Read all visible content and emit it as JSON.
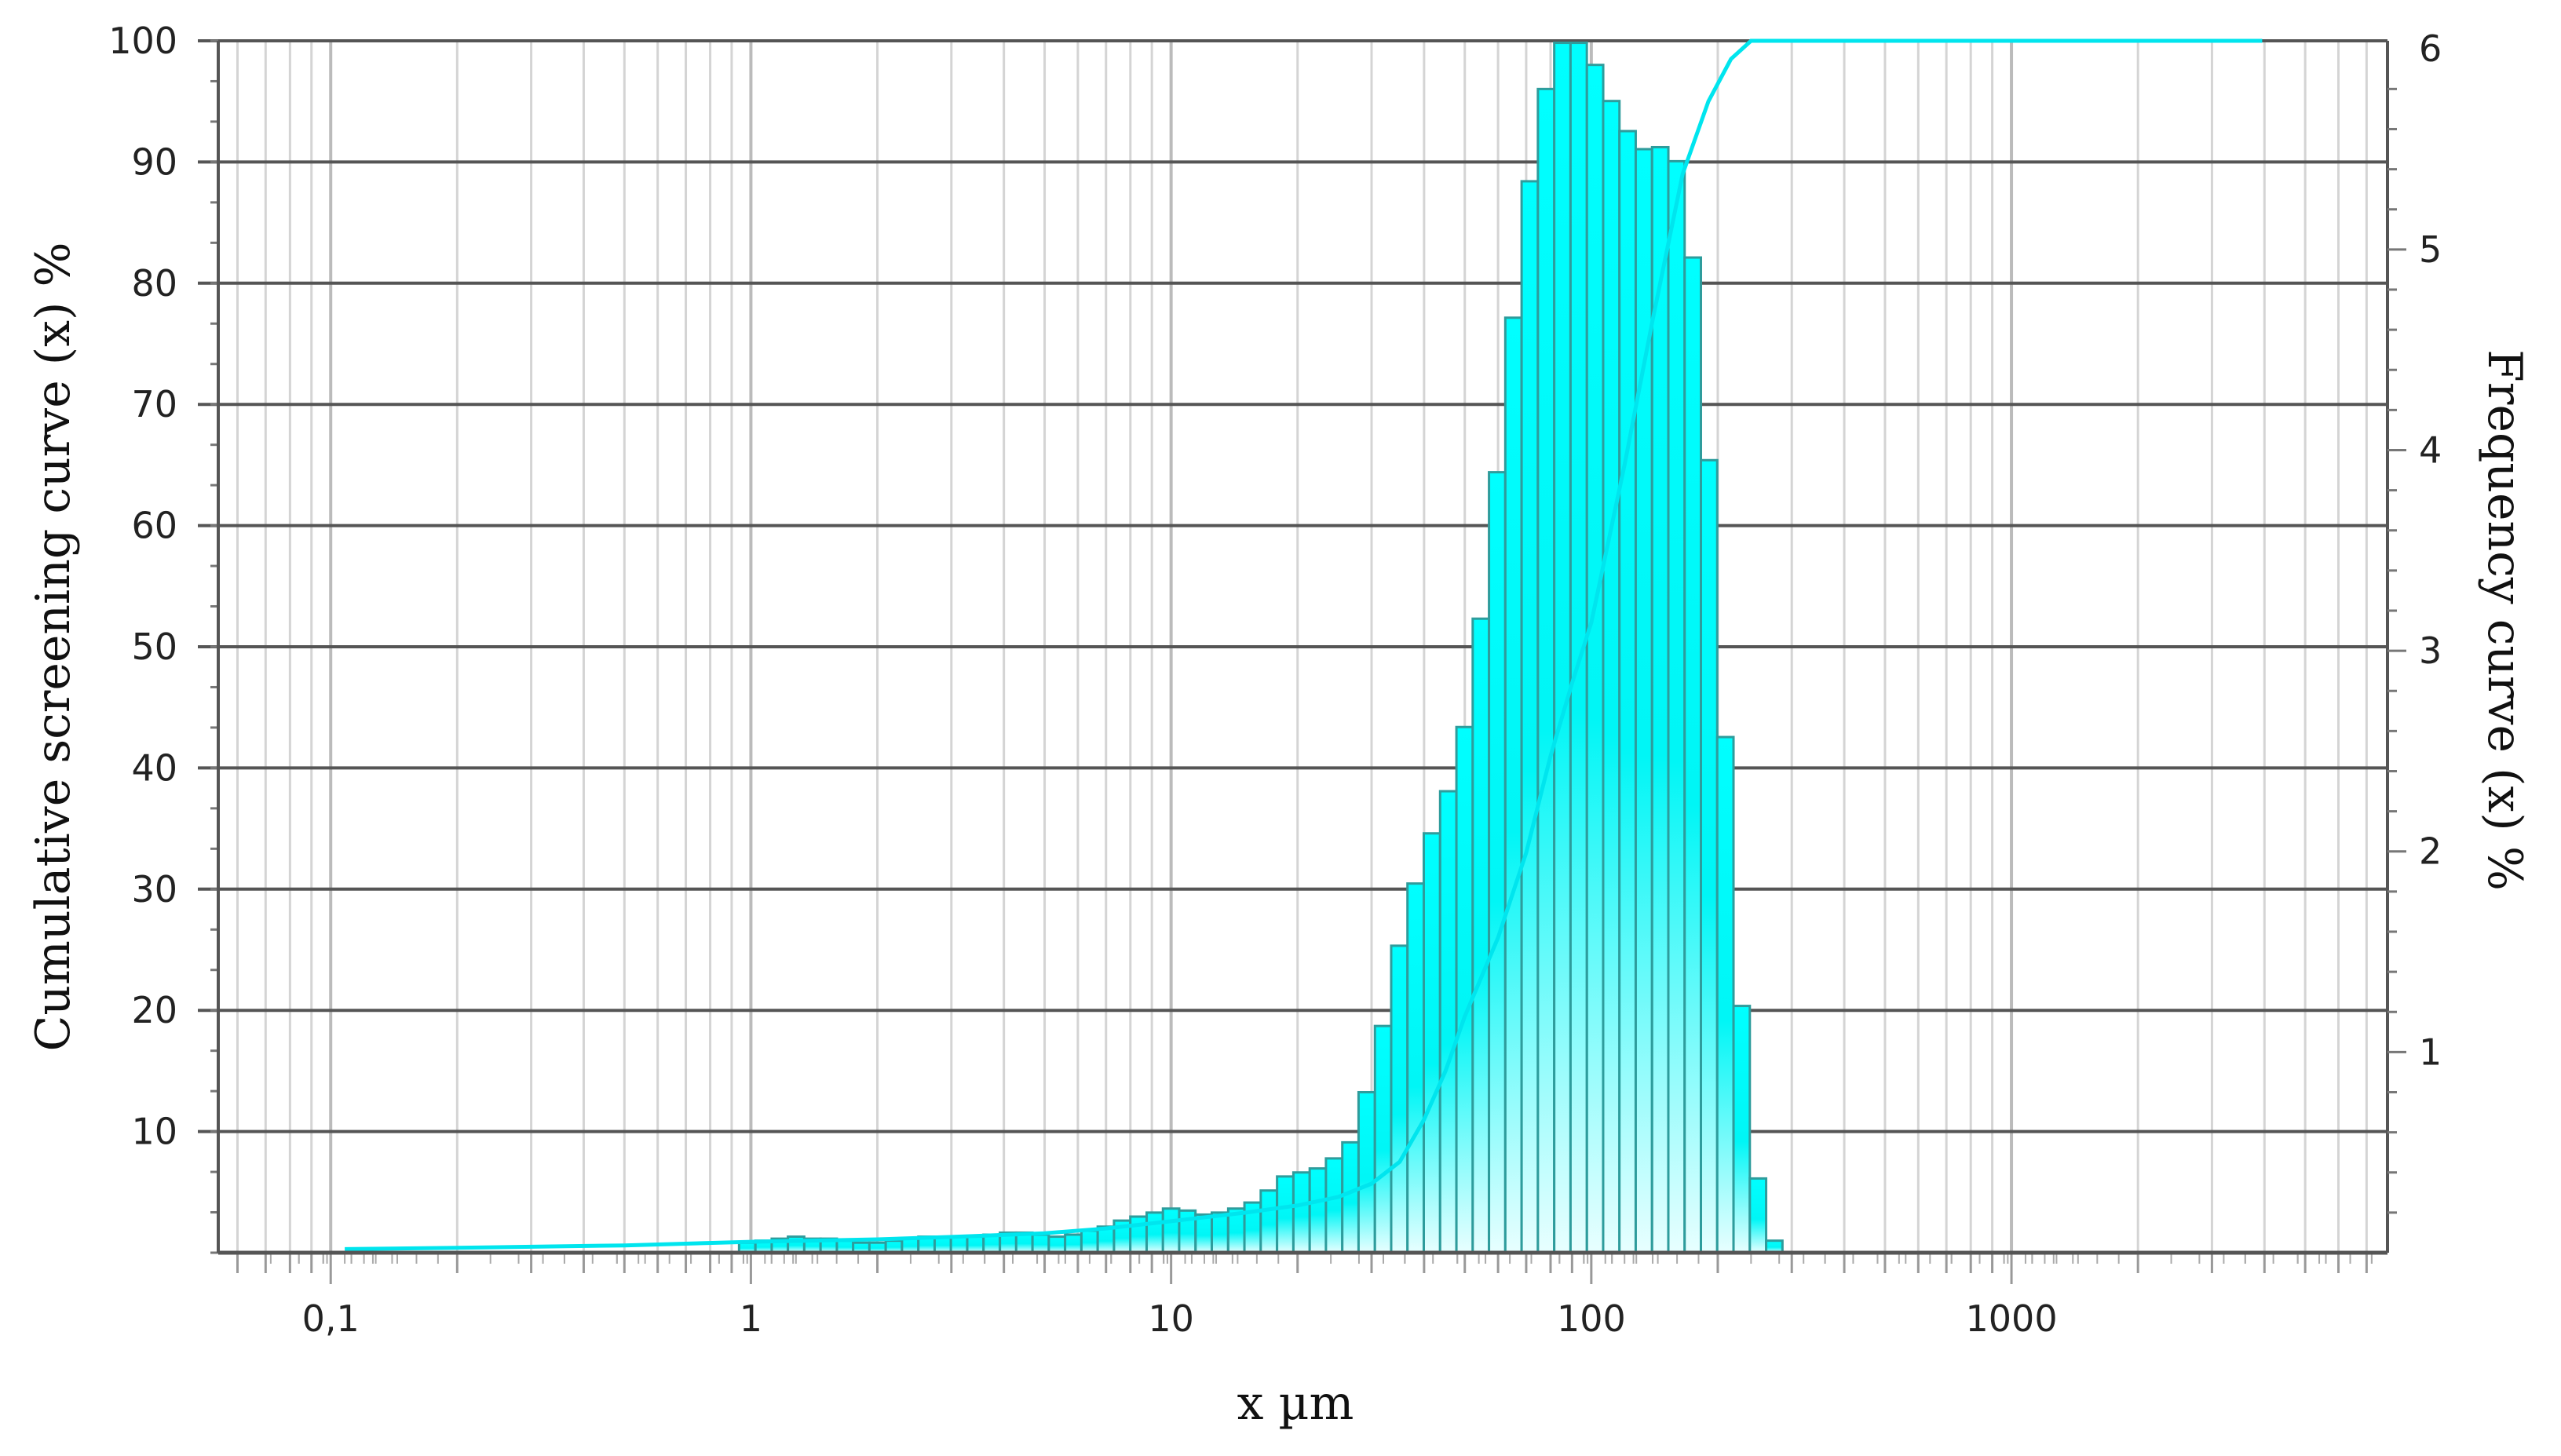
{
  "chart_data": {
    "type": "bar",
    "xlabel": "x µm",
    "ylabel": "Cumulative screening curve (x) %",
    "y2label": "Frequency curve (x) %",
    "xscale": "log",
    "xlim": [
      0.054,
      7850
    ],
    "ylim": [
      0,
      100
    ],
    "y2lim": [
      0,
      6.04
    ],
    "grid": true,
    "x_ticks": [
      {
        "value": 0.1,
        "label": "0,1"
      },
      {
        "value": 1,
        "label": "1"
      },
      {
        "value": 10,
        "label": "10"
      },
      {
        "value": 100,
        "label": "100"
      },
      {
        "value": 1000,
        "label": "1000"
      }
    ],
    "y_ticks": [
      {
        "value": 10,
        "label": "10"
      },
      {
        "value": 20,
        "label": "20"
      },
      {
        "value": 30,
        "label": "30"
      },
      {
        "value": 40,
        "label": "40"
      },
      {
        "value": 50,
        "label": "50"
      },
      {
        "value": 60,
        "label": "60"
      },
      {
        "value": 70,
        "label": "70"
      },
      {
        "value": 80,
        "label": "80"
      },
      {
        "value": 90,
        "label": "90"
      },
      {
        "value": 100,
        "label": "100"
      }
    ],
    "y2_ticks": [
      {
        "value": 1,
        "label": "1"
      },
      {
        "value": 2,
        "label": "2"
      },
      {
        "value": 3,
        "label": "3"
      },
      {
        "value": 4,
        "label": "4"
      },
      {
        "value": 5,
        "label": "5"
      },
      {
        "value": 6,
        "label": "6"
      }
    ],
    "colors": {
      "bar_fill_top": "#00ffff",
      "bar_fill_bottom": "#e6ffff",
      "bar_edge": "#2e9c9c",
      "curve": "#00e5ee",
      "major_grid": "#555555",
      "minor_grid": "#cccccc"
    },
    "frequency_bars": {
      "axis": "right",
      "log_bin_width": 0.0388,
      "x": [
        0.98,
        1.072,
        1.172,
        1.281,
        1.401,
        1.532,
        1.675,
        1.831,
        2.002,
        2.189,
        2.393,
        2.618,
        2.862,
        3.129,
        3.422,
        3.741,
        4.093,
        4.474,
        4.893,
        5.35,
        5.85,
        6.397,
        6.994,
        7.648,
        8.363,
        9.146,
        10,
        10.93,
        11.96,
        13.07,
        14.3,
        15.63,
        17.09,
        18.69,
        20.44,
        22.35,
        24.43,
        26.72,
        29.21,
        31.95,
        34.93,
        38.19,
        41.76,
        45.67,
        49.94,
        54.6,
        59.7,
        65.28,
        71.38,
        78.05,
        85.35,
        93.33,
        102.1,
        111.6,
        122.0,
        133.4,
        145.9,
        159.5,
        174.4,
        190.7,
        208.5,
        228.0,
        249.3,
        272.6
      ],
      "values": [
        0.05,
        0.06,
        0.07,
        0.08,
        0.07,
        0.07,
        0.06,
        0.05,
        0.05,
        0.06,
        0.07,
        0.08,
        0.08,
        0.08,
        0.08,
        0.09,
        0.1,
        0.1,
        0.09,
        0.08,
        0.09,
        0.11,
        0.13,
        0.16,
        0.18,
        0.2,
        0.22,
        0.21,
        0.19,
        0.2,
        0.22,
        0.25,
        0.31,
        0.38,
        0.4,
        0.42,
        0.47,
        0.55,
        0.8,
        1.13,
        1.53,
        1.84,
        2.09,
        2.3,
        2.62,
        3.16,
        3.89,
        4.66,
        5.34,
        5.8,
        6.03,
        6.03,
        5.92,
        5.74,
        5.59,
        5.5,
        5.51,
        5.44,
        4.96,
        3.95,
        2.57,
        1.23,
        0.37,
        0.06
      ]
    },
    "cumulative_curve": {
      "axis": "left",
      "x": [
        0.108,
        0.2,
        0.5,
        1,
        2,
        3,
        5,
        7,
        10,
        15,
        20,
        25,
        30,
        35,
        40,
        45,
        50,
        60,
        70,
        80,
        90,
        100,
        120,
        140,
        165,
        190,
        215,
        240,
        3950
      ],
      "y": [
        0.3,
        0.4,
        0.6,
        0.9,
        1.1,
        1.3,
        1.6,
        2.0,
        2.6,
        3.3,
        3.9,
        4.6,
        5.7,
        7.5,
        11,
        15,
        19.5,
        26,
        33,
        41,
        47,
        52,
        65,
        77,
        89,
        95,
        98.5,
        100,
        100
      ]
    }
  }
}
